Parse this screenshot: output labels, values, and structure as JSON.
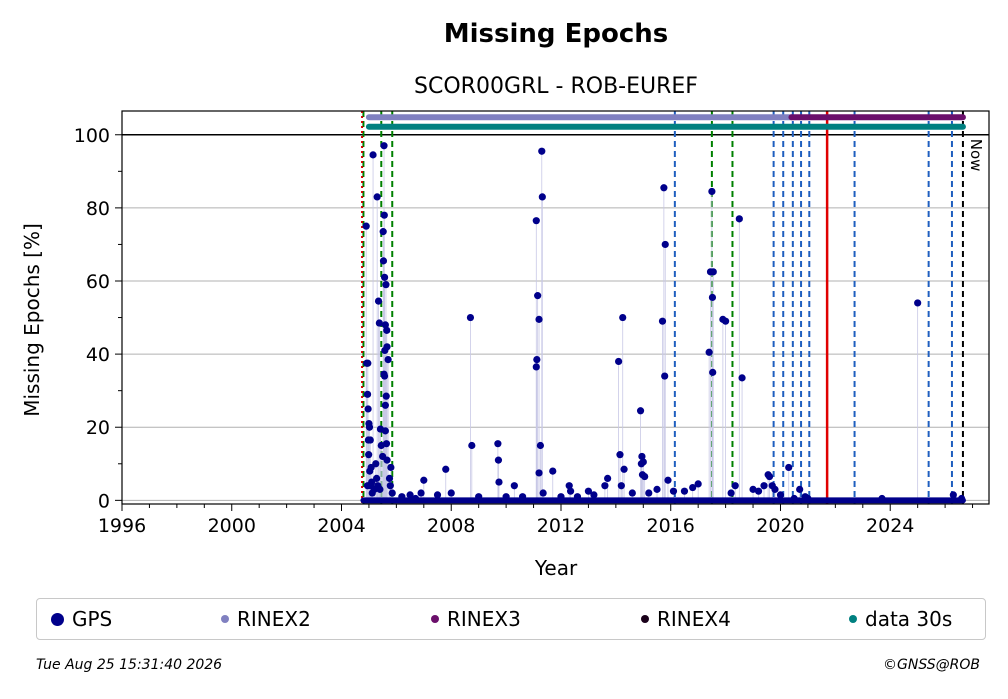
{
  "chart_data": {
    "type": "scatter",
    "title": "Missing Epochs",
    "subtitle": "SCOR00GRL - ROB-EUREF",
    "xlabel": "Year",
    "ylabel": "Missing Epochs [%]",
    "xlim": [
      1996,
      2027.6
    ],
    "ylim": [
      -1,
      106.5
    ],
    "xticks": [
      "1996",
      "2000",
      "2004",
      "2008",
      "2012",
      "2016",
      "2020",
      "2024"
    ],
    "xtick_values": [
      1996,
      2000,
      2004,
      2008,
      2012,
      2016,
      2020,
      2024
    ],
    "yticks": [
      "0",
      "20",
      "40",
      "60",
      "80",
      "100"
    ],
    "ytick_values": [
      0,
      20,
      40,
      60,
      80,
      100
    ],
    "grid": "horizontal",
    "now_label": "Now",
    "now_x": 2026.65,
    "series": [
      {
        "name": "GPS",
        "color": "#00008b",
        "baseline_start": 2004.8,
        "baseline_end": 2026.65,
        "points": [
          [
            2004.9,
            75
          ],
          [
            2004.92,
            37.5
          ],
          [
            2004.96,
            37.5
          ],
          [
            2004.95,
            29
          ],
          [
            2004.97,
            25
          ],
          [
            2005.0,
            21
          ],
          [
            2005.02,
            20
          ],
          [
            2004.98,
            16.5
          ],
          [
            2005.05,
            16.5
          ],
          [
            2004.99,
            12.5
          ],
          [
            2005.03,
            8
          ],
          [
            2005.08,
            9
          ],
          [
            2005.1,
            5
          ],
          [
            2005.06,
            4
          ],
          [
            2004.95,
            4
          ],
          [
            2005.12,
            2
          ],
          [
            2005.15,
            94.5
          ],
          [
            2005.3,
            83
          ],
          [
            2005.35,
            54.5
          ],
          [
            2005.38,
            48.5
          ],
          [
            2005.25,
            10
          ],
          [
            2005.28,
            6
          ],
          [
            2005.32,
            4
          ],
          [
            2005.2,
            3
          ],
          [
            2005.4,
            3
          ],
          [
            2005.42,
            19.5
          ],
          [
            2005.45,
            15
          ],
          [
            2005.5,
            12
          ],
          [
            2005.55,
            97
          ],
          [
            2005.56,
            78
          ],
          [
            2005.52,
            73.5
          ],
          [
            2005.53,
            65.5
          ],
          [
            2005.57,
            61
          ],
          [
            2005.62,
            59
          ],
          [
            2005.6,
            48
          ],
          [
            2005.65,
            46.5
          ],
          [
            2005.58,
            41
          ],
          [
            2005.66,
            42
          ],
          [
            2005.7,
            38.5
          ],
          [
            2005.55,
            34.5
          ],
          [
            2005.57,
            34
          ],
          [
            2005.63,
            28.5
          ],
          [
            2005.6,
            26
          ],
          [
            2005.6,
            19
          ],
          [
            2005.64,
            15.5
          ],
          [
            2005.66,
            11
          ],
          [
            2005.8,
            9
          ],
          [
            2005.75,
            6
          ],
          [
            2005.78,
            4
          ],
          [
            2005.85,
            2
          ],
          [
            2006.2,
            1
          ],
          [
            2006.5,
            1.5
          ],
          [
            2006.7,
            0.5
          ],
          [
            2006.9,
            2
          ],
          [
            2007.0,
            5.5
          ],
          [
            2007.5,
            1.5
          ],
          [
            2007.8,
            8.5
          ],
          [
            2008.0,
            2
          ],
          [
            2008.7,
            50
          ],
          [
            2008.75,
            15
          ],
          [
            2009.0,
            1
          ],
          [
            2009.7,
            15.5
          ],
          [
            2009.72,
            11
          ],
          [
            2009.74,
            5
          ],
          [
            2010.0,
            1
          ],
          [
            2010.3,
            4
          ],
          [
            2010.6,
            1
          ],
          [
            2011.1,
            76.5
          ],
          [
            2011.15,
            56
          ],
          [
            2011.2,
            49.5
          ],
          [
            2011.12,
            38.5
          ],
          [
            2011.1,
            36.5
          ],
          [
            2011.3,
            95.5
          ],
          [
            2011.32,
            83
          ],
          [
            2011.25,
            15
          ],
          [
            2011.2,
            7.5
          ],
          [
            2011.35,
            2
          ],
          [
            2011.7,
            8
          ],
          [
            2012.0,
            1
          ],
          [
            2012.3,
            4
          ],
          [
            2012.35,
            2.5
          ],
          [
            2012.6,
            1
          ],
          [
            2013.0,
            2.5
          ],
          [
            2013.2,
            1.5
          ],
          [
            2013.6,
            4
          ],
          [
            2013.7,
            6
          ],
          [
            2014.1,
            38
          ],
          [
            2014.15,
            12.5
          ],
          [
            2014.25,
            50
          ],
          [
            2014.3,
            8.5
          ],
          [
            2014.2,
            4
          ],
          [
            2014.6,
            2
          ],
          [
            2014.9,
            24.5
          ],
          [
            2014.95,
            12
          ],
          [
            2014.93,
            10
          ],
          [
            2015.0,
            10.5
          ],
          [
            2014.97,
            7
          ],
          [
            2015.05,
            6.5
          ],
          [
            2015.2,
            2
          ],
          [
            2015.5,
            3
          ],
          [
            2015.7,
            49
          ],
          [
            2015.75,
            85.5
          ],
          [
            2015.8,
            70
          ],
          [
            2015.78,
            34
          ],
          [
            2015.9,
            5.5
          ],
          [
            2016.1,
            2.5
          ],
          [
            2016.5,
            2.5
          ],
          [
            2016.8,
            3.5
          ],
          [
            2017.0,
            4.5
          ],
          [
            2017.4,
            40.5
          ],
          [
            2017.45,
            62.5
          ],
          [
            2017.5,
            84.5
          ],
          [
            2017.52,
            55.5
          ],
          [
            2017.55,
            62.5
          ],
          [
            2017.53,
            35
          ],
          [
            2017.9,
            49.5
          ],
          [
            2018.0,
            49
          ],
          [
            2018.2,
            2
          ],
          [
            2018.35,
            4
          ],
          [
            2018.5,
            77
          ],
          [
            2018.6,
            33.5
          ],
          [
            2019.0,
            3
          ],
          [
            2019.2,
            2.5
          ],
          [
            2019.4,
            4
          ],
          [
            2019.55,
            7
          ],
          [
            2019.6,
            6.5
          ],
          [
            2019.7,
            4
          ],
          [
            2019.8,
            3
          ],
          [
            2020.0,
            1.5
          ],
          [
            2020.3,
            9
          ],
          [
            2020.5,
            0.5
          ],
          [
            2020.7,
            3
          ],
          [
            2020.9,
            1
          ],
          [
            2021.0,
            0.5
          ],
          [
            2023.7,
            0.5
          ],
          [
            2025.0,
            54
          ],
          [
            2026.3,
            1.5
          ],
          [
            2026.6,
            0.5
          ]
        ]
      },
      {
        "name": "RINEX2",
        "color": "#8080c0",
        "y": 104.8,
        "start": 2005.0,
        "end": 2020.4
      },
      {
        "name": "RINEX3",
        "color": "#6b0f6b",
        "y": 104.8,
        "start": 2020.4,
        "end": 2026.65
      },
      {
        "name": "RINEX4",
        "color": "#1a001a",
        "y": null,
        "start": null,
        "end": null
      },
      {
        "name": "data 30s",
        "color": "#008080",
        "y": 102.2,
        "start": 2005.0,
        "end": 2026.65
      }
    ],
    "vertical_lines": {
      "red_solid": [
        2021.7
      ],
      "red_dotted": [
        2004.75
      ],
      "green_dashed": [
        2004.8,
        2005.45,
        2005.85,
        2017.5,
        2018.25
      ],
      "blue_dashed": [
        2016.15,
        2019.75,
        2020.1,
        2020.45,
        2020.75,
        2021.05,
        2022.7,
        2025.4,
        2026.25
      ],
      "black_dashed": [
        2026.65
      ]
    },
    "legend": {
      "placement": "bottom",
      "items": [
        {
          "label": "GPS",
          "color": "#00008b"
        },
        {
          "label": "RINEX2",
          "color": "#8080c0"
        },
        {
          "label": "RINEX3",
          "color": "#6b0f6b"
        },
        {
          "label": "RINEX4",
          "color": "#1a001a"
        },
        {
          "label": "data 30s",
          "color": "#008080"
        }
      ]
    }
  },
  "footer": {
    "timestamp": "Tue Aug 25 15:31:40 2026",
    "copyright": "©GNSS@ROB"
  }
}
